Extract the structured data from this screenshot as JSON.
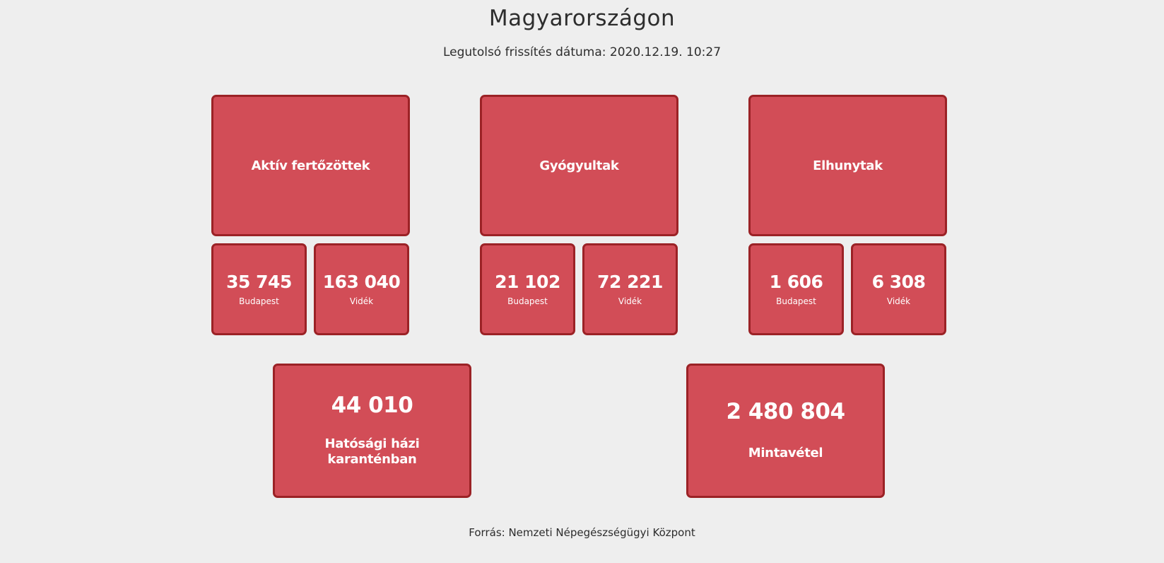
{
  "header": {
    "title": "Magyarországon",
    "subtitle": "Legutolsó frissítés dátuma: 2020.12.19. 10:27"
  },
  "groups": [
    {
      "label": "Aktív fertőzöttek",
      "budapest_value": "35 745",
      "budapest_label": "Budapest",
      "videk_value": "163 040",
      "videk_label": "Vidék"
    },
    {
      "label": "Gyógyultak",
      "budapest_value": "21 102",
      "budapest_label": "Budapest",
      "videk_value": "72 221",
      "videk_label": "Vidék"
    },
    {
      "label": "Elhunytak",
      "budapest_value": "1 606",
      "budapest_label": "Budapest",
      "videk_value": "6 308",
      "videk_label": "Vidék"
    }
  ],
  "quarantine": {
    "value": "44 010",
    "label_line1": "Hatósági házi",
    "label_line2": "karanténban"
  },
  "samples": {
    "value": "2 480 804",
    "label": "Mintavétel"
  },
  "footer": {
    "source": "Forrás: Nemzeti Népegészségügyi Központ"
  },
  "colors": {
    "card_bg": "#d24d57",
    "card_border": "#9b2226",
    "page_bg": "#eeeeee"
  }
}
